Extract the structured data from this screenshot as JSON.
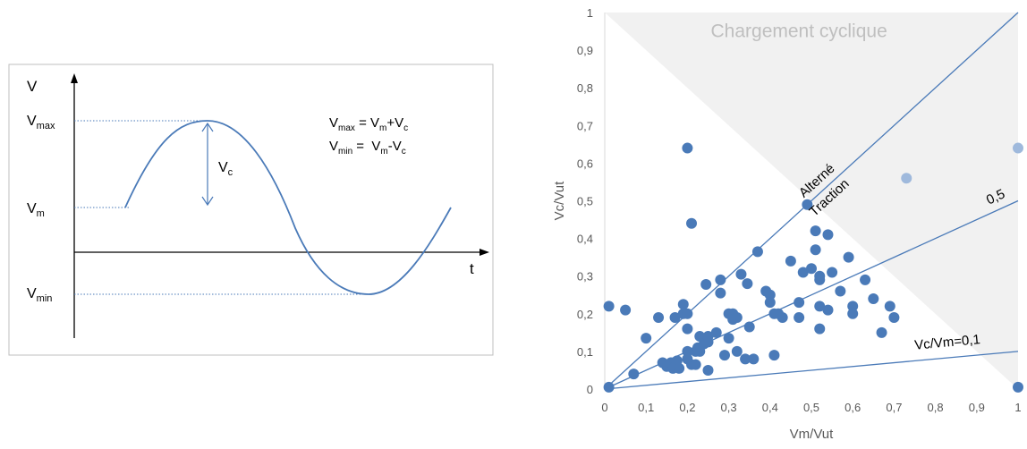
{
  "diagram": {
    "v_axis_label": "V",
    "t_axis_label": "t",
    "vmax_label": {
      "base": "V",
      "sub": "max"
    },
    "vm_label": {
      "base": "V",
      "sub": "m"
    },
    "vmin_label": {
      "base": "V",
      "sub": "min"
    },
    "vc_label": {
      "base": "V",
      "sub": "c"
    },
    "formula_max": {
      "lhs_base": "V",
      "lhs_sub": "max",
      "eq": " = ",
      "a_base": "V",
      "a_sub": "m",
      "op": "+",
      "b_base": "V",
      "b_sub": "c"
    },
    "formula_min": {
      "lhs_base": "V",
      "lhs_sub": "min",
      "eq": " =  ",
      "a_base": "V",
      "a_sub": "m",
      "op": "-",
      "b_base": "V",
      "b_sub": "c"
    },
    "colors": {
      "curve": "#4a7ab8",
      "axis": "#000000",
      "frame": "#bfbfbf",
      "dotted": "#4a7ab8"
    }
  },
  "chart_data": {
    "type": "scatter",
    "title": "Chargement cyclique",
    "xlabel": "Vm/Vut",
    "ylabel": "Vc/Vut",
    "xlim": [
      0,
      1
    ],
    "ylim": [
      0,
      1
    ],
    "x_ticks": [
      "0",
      "0,1",
      "0,2",
      "0,3",
      "0,4",
      "0,5",
      "0,6",
      "0,7",
      "0,8",
      "0,9",
      "1"
    ],
    "y_ticks": [
      "0",
      "0,1",
      "0,2",
      "0,3",
      "0,4",
      "0,5",
      "0,6",
      "0,7",
      "0,8",
      "0,9",
      "1"
    ],
    "grid": false,
    "shaded_region": "above line y = 1 - x",
    "reference_lines": [
      {
        "label": "Alterné",
        "slope": 1.0
      },
      {
        "label": "Traction",
        "slope": 1.0
      },
      {
        "label": "0,5",
        "slope": 0.5
      },
      {
        "label": "Vc/Vm=0,1",
        "slope": 0.1
      }
    ],
    "series": [
      {
        "values": [
          [
            0.01,
            0.22
          ],
          [
            0.05,
            0.21
          ],
          [
            0.07,
            0.04
          ],
          [
            0.1,
            0.135
          ],
          [
            0.13,
            0.19
          ],
          [
            0.14,
            0.07
          ],
          [
            0.15,
            0.06
          ],
          [
            0.16,
            0.07
          ],
          [
            0.165,
            0.055
          ],
          [
            0.17,
            0.06
          ],
          [
            0.175,
            0.075
          ],
          [
            0.18,
            0.055
          ],
          [
            0.17,
            0.19
          ],
          [
            0.19,
            0.2
          ],
          [
            0.19,
            0.225
          ],
          [
            0.2,
            0.08
          ],
          [
            0.2,
            0.1
          ],
          [
            0.2,
            0.16
          ],
          [
            0.2,
            0.2
          ],
          [
            0.2,
            0.64
          ],
          [
            0.21,
            0.065
          ],
          [
            0.21,
            0.44
          ],
          [
            0.22,
            0.065
          ],
          [
            0.22,
            0.1
          ],
          [
            0.225,
            0.11
          ],
          [
            0.23,
            0.1
          ],
          [
            0.23,
            0.14
          ],
          [
            0.24,
            0.12
          ],
          [
            0.245,
            0.278
          ],
          [
            0.25,
            0.05
          ],
          [
            0.25,
            0.14
          ],
          [
            0.25,
            0.125
          ],
          [
            0.27,
            0.15
          ],
          [
            0.28,
            0.255
          ],
          [
            0.28,
            0.29
          ],
          [
            0.29,
            0.09
          ],
          [
            0.3,
            0.2
          ],
          [
            0.3,
            0.135
          ],
          [
            0.31,
            0.2
          ],
          [
            0.31,
            0.185
          ],
          [
            0.32,
            0.1
          ],
          [
            0.32,
            0.19
          ],
          [
            0.33,
            0.305
          ],
          [
            0.34,
            0.08
          ],
          [
            0.345,
            0.28
          ],
          [
            0.35,
            0.165
          ],
          [
            0.36,
            0.08
          ],
          [
            0.37,
            0.365
          ],
          [
            0.39,
            0.26
          ],
          [
            0.4,
            0.23
          ],
          [
            0.4,
            0.25
          ],
          [
            0.41,
            0.09
          ],
          [
            0.41,
            0.2
          ],
          [
            0.42,
            0.2
          ],
          [
            0.43,
            0.19
          ],
          [
            0.45,
            0.34
          ],
          [
            0.47,
            0.19
          ],
          [
            0.47,
            0.23
          ],
          [
            0.48,
            0.31
          ],
          [
            0.49,
            0.49
          ],
          [
            0.5,
            0.32
          ],
          [
            0.51,
            0.37
          ],
          [
            0.51,
            0.42
          ],
          [
            0.52,
            0.3
          ],
          [
            0.52,
            0.29
          ],
          [
            0.52,
            0.22
          ],
          [
            0.52,
            0.16
          ],
          [
            0.54,
            0.21
          ],
          [
            0.54,
            0.41
          ],
          [
            0.55,
            0.31
          ],
          [
            0.57,
            0.26
          ],
          [
            0.59,
            0.35
          ],
          [
            0.6,
            0.2
          ],
          [
            0.6,
            0.22
          ],
          [
            0.63,
            0.29
          ],
          [
            0.65,
            0.24
          ],
          [
            0.67,
            0.15
          ],
          [
            0.69,
            0.22
          ],
          [
            0.7,
            0.19
          ],
          [
            0.01,
            0.005
          ],
          [
            1.0,
            0.005
          ]
        ]
      },
      {
        "values": [
          [
            0.73,
            0.56
          ],
          [
            1.0,
            0.64
          ]
        ],
        "style": "faded"
      }
    ],
    "colors": {
      "marker": "#4a7ab8",
      "marker_faded": "#9fb9dc",
      "line": "#4a7ab8",
      "shade": "#f1f1f1",
      "title": "#bfbfbf"
    }
  }
}
